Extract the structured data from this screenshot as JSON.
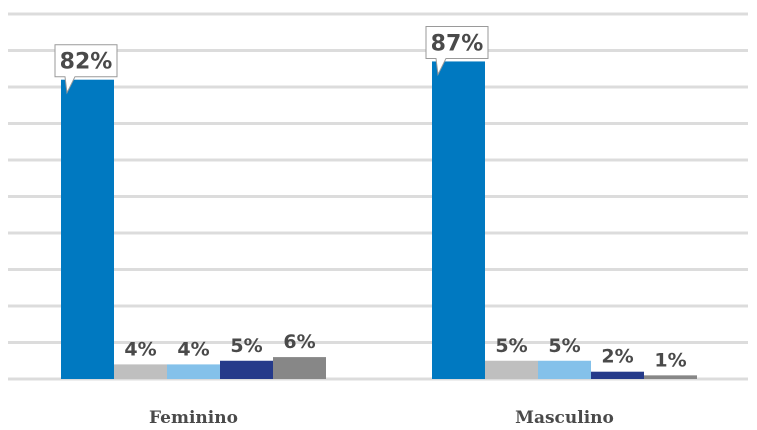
{
  "chart_data": {
    "type": "bar",
    "categories": [
      "Feminino",
      "Masculino"
    ],
    "series": [
      {
        "color": "#0079c1",
        "values": [
          82,
          87
        ],
        "labels": [
          "82%",
          "87%"
        ]
      },
      {
        "color": "#bfbfbf",
        "values": [
          4,
          5
        ],
        "labels": [
          "4%",
          "5%"
        ]
      },
      {
        "color": "#84c1ea",
        "values": [
          4,
          5
        ],
        "labels": [
          "4%",
          "5%"
        ]
      },
      {
        "color": "#253a8a",
        "values": [
          5,
          2
        ],
        "labels": [
          "5%",
          "2%"
        ]
      },
      {
        "color": "#878787",
        "values": [
          6,
          1
        ],
        "labels": [
          "6%",
          "1%"
        ]
      }
    ],
    "ylim": [
      0,
      100
    ],
    "grid": true,
    "legend": "none",
    "title": "",
    "xlabel": "",
    "ylabel": ""
  }
}
